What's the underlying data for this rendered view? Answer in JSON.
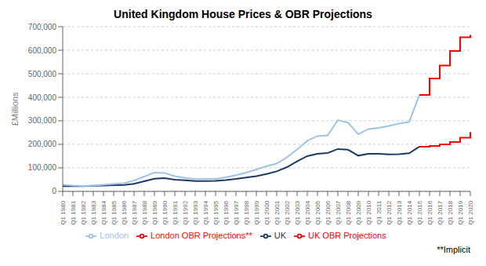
{
  "chart_data": {
    "type": "line",
    "title": "United Kingdom House Prices & OBR Projections",
    "ylabel": "£Millions",
    "annotations": [
      "**Implicit"
    ],
    "categories": [
      "Q1 1980",
      "Q1 1981",
      "Q1 1982",
      "Q1 1983",
      "Q1 1984",
      "Q1 1985",
      "Q1 1986",
      "Q1 1987",
      "Q1 1988",
      "Q1 1989",
      "Q1 1990",
      "Q1 1991",
      "Q1 1992",
      "Q1 1993",
      "Q1 1994",
      "Q1 1995",
      "Q1 1996",
      "Q1 1997",
      "Q1 1998",
      "Q1 1999",
      "Q1 2000",
      "Q1 2001",
      "Q1 2002",
      "Q1 2003",
      "Q1 2004",
      "Q1 2005",
      "Q1 2006",
      "Q1 2007",
      "Q1 2008",
      "Q1 2009",
      "Q1 2010",
      "Q1 2011",
      "Q1 2012",
      "Q1 2013",
      "Q1 2014",
      "Q1 2015",
      "Q1 2016",
      "Q1 2017",
      "Q1 2018",
      "Q1 2019",
      "Q1 2020"
    ],
    "series": [
      {
        "name": "UK",
        "color": "#1f3864",
        "line_style": "solid",
        "values": [
          22000,
          22000,
          22000,
          24000,
          25000,
          26000,
          27000,
          32000,
          43000,
          54000,
          56000,
          50000,
          47000,
          44000,
          44000,
          45000,
          48000,
          53000,
          59000,
          65000,
          74000,
          85000,
          103000,
          128000,
          150000,
          160000,
          163000,
          180000,
          177000,
          152000,
          160000,
          160000,
          157000,
          158000,
          162000,
          190000,
          null,
          null,
          null,
          null,
          null
        ]
      },
      {
        "name": "UK OBR Projections",
        "color": "#ff0000",
        "line_style": "step",
        "values": [
          null,
          null,
          null,
          null,
          null,
          null,
          null,
          null,
          null,
          null,
          null,
          null,
          null,
          null,
          null,
          null,
          null,
          null,
          null,
          null,
          null,
          null,
          null,
          null,
          null,
          null,
          null,
          null,
          null,
          null,
          null,
          null,
          null,
          null,
          null,
          190000,
          193000,
          200000,
          210000,
          228000,
          252000
        ]
      },
      {
        "name": "London",
        "color": "#9dc3e6",
        "line_style": "solid",
        "values": [
          28000,
          25000,
          23000,
          25000,
          28000,
          31000,
          35000,
          46000,
          63000,
          80000,
          78000,
          65000,
          57000,
          52000,
          53000,
          53000,
          60000,
          69000,
          80000,
          93000,
          107000,
          118000,
          145000,
          178000,
          215000,
          235000,
          238000,
          303000,
          292000,
          243000,
          265000,
          270000,
          278000,
          288000,
          295000,
          410000,
          null,
          null,
          null,
          null,
          null
        ]
      },
      {
        "name": "London OBR Projections**",
        "color": "#ff0000",
        "line_style": "step",
        "values": [
          null,
          null,
          null,
          null,
          null,
          null,
          null,
          null,
          null,
          null,
          null,
          null,
          null,
          null,
          null,
          null,
          null,
          null,
          null,
          null,
          null,
          null,
          null,
          null,
          null,
          null,
          null,
          null,
          null,
          null,
          null,
          null,
          null,
          null,
          null,
          410000,
          480000,
          535000,
          597000,
          655000,
          665000
        ]
      }
    ],
    "ylim": [
      0,
      700000
    ],
    "yticks": [
      0,
      {
        "value": 100000,
        "label": "100,000"
      },
      {
        "value": 200000,
        "label": "200,000"
      },
      {
        "value": 300000,
        "label": "300,000"
      },
      {
        "value": 400000,
        "label": "400,000"
      },
      {
        "value": 500000,
        "label": "500,000"
      },
      {
        "value": 600000,
        "label": "600,000"
      },
      {
        "value": 700000,
        "label": "700,000"
      }
    ],
    "grid": true,
    "legend": "bottom"
  }
}
